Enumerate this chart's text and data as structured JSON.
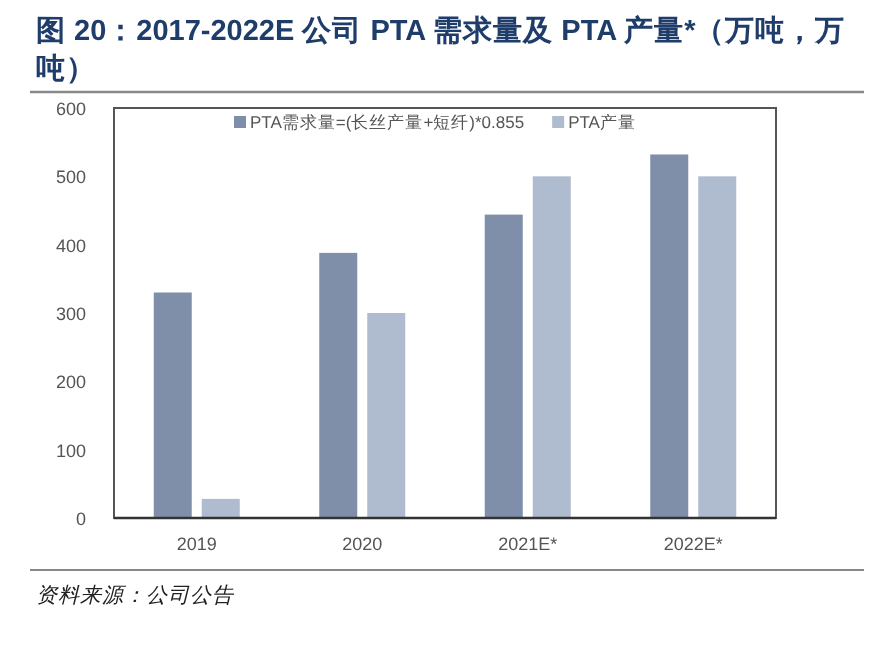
{
  "chart_data": {
    "type": "bar",
    "title": "图 20：2017-2022E 公司 PTA 需求量及 PTA 产量*（万吨，万吨）",
    "categories": [
      "2019",
      "2020",
      "2021E*",
      "2022E*"
    ],
    "series": [
      {
        "name": "PTA需求量=(长丝产量+短纤)*0.855",
        "color": "#7f8fa9",
        "values": [
          330,
          388,
          444,
          532
        ]
      },
      {
        "name": "PTA产量",
        "color": "#afbbcf",
        "values": [
          28,
          300,
          500,
          500
        ]
      }
    ],
    "ylim": [
      0,
      600
    ],
    "yticks": [
      0,
      100,
      200,
      300,
      400,
      500,
      600
    ],
    "grid": false,
    "legend": "top",
    "annotations": [
      "资料来源：公司公告"
    ]
  }
}
